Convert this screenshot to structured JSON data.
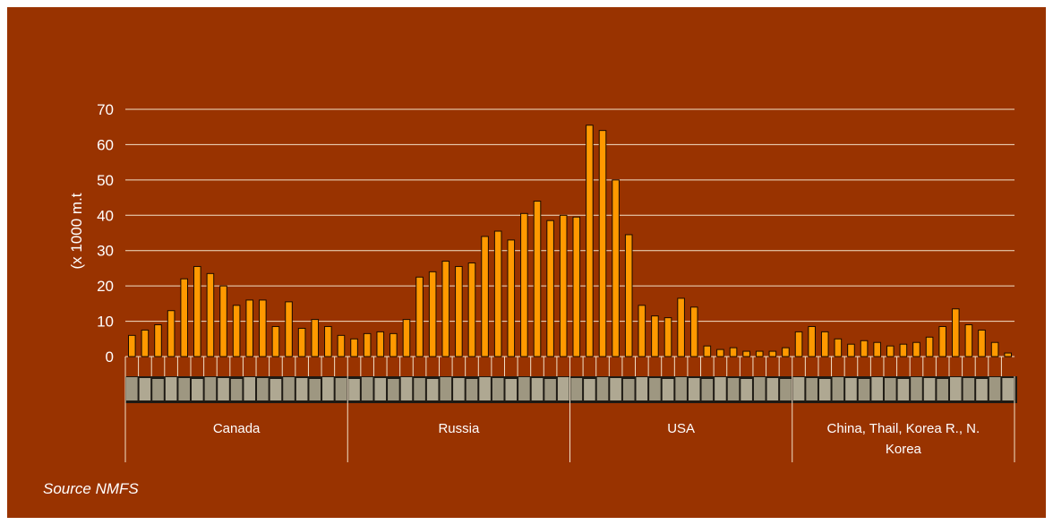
{
  "chart_data": {
    "type": "bar",
    "title": "",
    "ylabel": "(x 1000 m.t",
    "ylim": [
      0,
      70
    ],
    "yticks": [
      "0",
      "10",
      "20",
      "30",
      "40",
      "50",
      "60",
      "70"
    ],
    "grid": true,
    "bar_color": "#FF9900",
    "background": "#993300",
    "groups": [
      {
        "name": "Canada",
        "values": [
          6,
          7.5,
          9,
          13,
          22,
          25.5,
          23.5,
          20,
          14.5,
          16,
          16,
          8.5,
          15.5,
          8,
          10.5,
          8.5,
          6
        ]
      },
      {
        "name": "Russia",
        "values": [
          5,
          6.5,
          7,
          6.5,
          10.5,
          22.5,
          24,
          27,
          25.5,
          26.5,
          34,
          35.5,
          33,
          40.5,
          44,
          38.5,
          40
        ]
      },
      {
        "name": "USA",
        "values": [
          39.5,
          65.5,
          64,
          50,
          34.5,
          14.5,
          11.5,
          11,
          16.5,
          14,
          3,
          2,
          2.5,
          1.5,
          1.5,
          1.5,
          2.5
        ]
      },
      {
        "name": "China, Thail, Korea R., N. Korea",
        "name_lines": [
          "China, Thail, Korea R., N.",
          "Korea"
        ],
        "values": [
          7,
          8.5,
          7,
          5,
          3.5,
          4.5,
          4,
          3,
          3.5,
          4,
          5.5,
          8.5,
          13.5,
          9,
          7.5,
          4,
          1
        ]
      }
    ]
  },
  "source_note": "Source NMFS"
}
